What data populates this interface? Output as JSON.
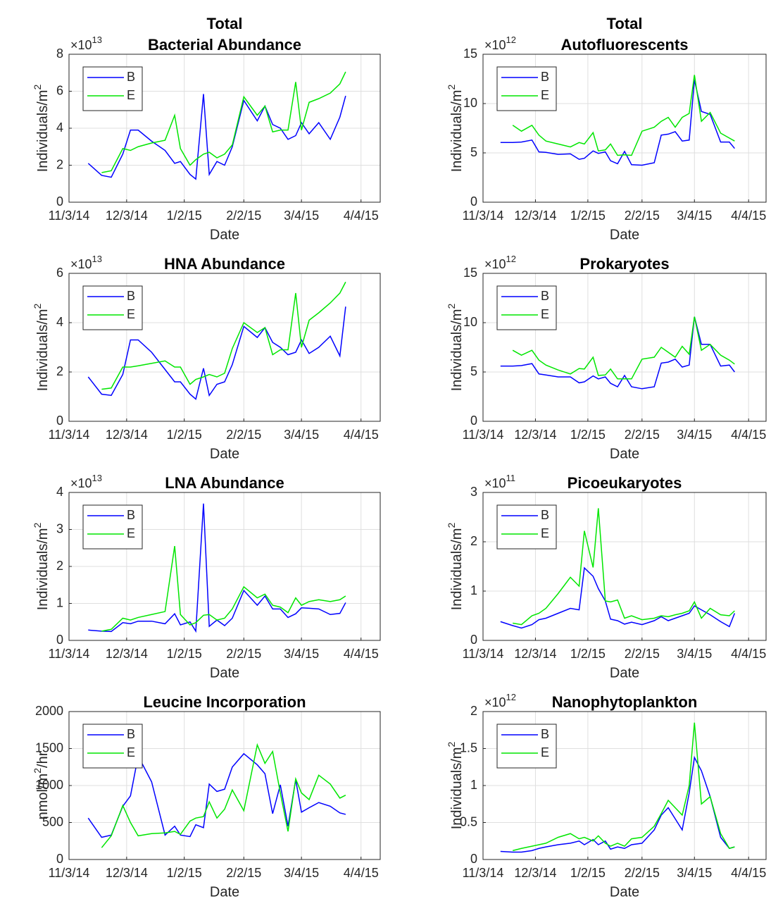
{
  "chart_data": [
    {
      "type": "line",
      "title": [
        "Total",
        "Bacterial Abundance"
      ],
      "xlabel": "Date",
      "ylabel": [
        "Individuals/m",
        "2"
      ],
      "y_multiplier": [
        "×10",
        "13"
      ],
      "x": [
        "11/13/14",
        "11/20/14",
        "11/25/14",
        "12/1/14",
        "12/5/14",
        "12/9/14",
        "12/16/14",
        "12/23/14",
        "12/28/14",
        "12/31/14",
        "1/5/15",
        "1/8/15",
        "1/12/15",
        "1/15/15",
        "1/19/15",
        "1/23/15",
        "1/27/15",
        "2/2/15",
        "2/9/15",
        "2/13/15",
        "2/17/15",
        "2/21/15",
        "2/25/15",
        "3/1/15",
        "3/4/15",
        "3/8/15",
        "3/13/15",
        "3/19/15",
        "3/24/15",
        "3/27/15"
      ],
      "xlim": [
        "11/3/14",
        "4/14/15"
      ],
      "xticks": [
        "11/3/14",
        "12/3/14",
        "1/2/15",
        "2/2/15",
        "3/4/15",
        "4/4/15"
      ],
      "ylim": [
        0,
        8
      ],
      "yticks": [
        0,
        2,
        4,
        6,
        8
      ],
      "grid": true,
      "legend": "upper left",
      "series": [
        {
          "name": "B",
          "color": "#0000ff",
          "values": [
            2.1,
            1.45,
            1.35,
            2.6,
            3.9,
            3.9,
            3.3,
            2.8,
            2.1,
            2.2,
            1.5,
            1.25,
            5.85,
            1.5,
            2.2,
            2.0,
            3.0,
            5.5,
            4.4,
            5.2,
            4.2,
            4.0,
            3.4,
            3.6,
            4.3,
            3.7,
            4.3,
            3.4,
            4.6,
            5.75
          ]
        },
        {
          "name": "E",
          "color": "#00e600",
          "values": [
            null,
            1.6,
            1.7,
            2.9,
            2.8,
            3.0,
            3.2,
            3.35,
            4.7,
            2.9,
            2.0,
            2.3,
            2.6,
            2.7,
            2.4,
            2.6,
            3.1,
            5.7,
            4.7,
            5.2,
            3.8,
            3.9,
            3.9,
            6.5,
            3.9,
            5.4,
            5.6,
            5.9,
            6.4,
            7.05
          ]
        }
      ]
    },
    {
      "type": "line",
      "title": [
        "Total",
        "Autofluorescents"
      ],
      "xlabel": "Date",
      "ylabel": [
        "Individuals/m",
        "2"
      ],
      "y_multiplier": [
        "×10",
        "12"
      ],
      "x": [
        "11/13/14",
        "11/20/14",
        "11/25/14",
        "12/1/14",
        "12/5/14",
        "12/9/14",
        "12/16/14",
        "12/23/14",
        "12/28/14",
        "12/31/14",
        "1/5/15",
        "1/8/15",
        "1/12/15",
        "1/15/15",
        "1/19/15",
        "1/23/15",
        "1/27/15",
        "2/2/15",
        "2/9/15",
        "2/13/15",
        "2/17/15",
        "2/21/15",
        "2/25/15",
        "3/1/15",
        "3/4/15",
        "3/8/15",
        "3/13/15",
        "3/19/15",
        "3/24/15",
        "3/27/15"
      ],
      "xlim": [
        "11/3/14",
        "4/14/15"
      ],
      "xticks": [
        "11/3/14",
        "12/3/14",
        "1/2/15",
        "2/2/15",
        "3/4/15",
        "4/4/15"
      ],
      "ylim": [
        0,
        15
      ],
      "yticks": [
        0,
        5,
        10,
        15
      ],
      "grid": true,
      "legend": "upper left",
      "series": [
        {
          "name": "B",
          "color": "#0000ff",
          "values": [
            6.05,
            6.05,
            6.1,
            6.3,
            5.1,
            5.05,
            4.85,
            4.9,
            4.35,
            4.45,
            5.2,
            4.95,
            5.1,
            4.2,
            3.9,
            5.15,
            3.8,
            3.75,
            4.0,
            6.8,
            6.9,
            7.15,
            6.2,
            6.3,
            12.4,
            9.2,
            8.9,
            6.1,
            6.1,
            5.45
          ]
        },
        {
          "name": "E",
          "color": "#00e600",
          "values": [
            null,
            7.8,
            7.2,
            7.8,
            6.8,
            6.2,
            5.9,
            5.6,
            6.05,
            5.9,
            7.05,
            5.2,
            5.3,
            5.9,
            4.75,
            4.8,
            4.75,
            7.2,
            7.6,
            8.2,
            8.6,
            7.6,
            8.6,
            9.0,
            12.9,
            8.2,
            9.1,
            7.0,
            6.5,
            6.2
          ]
        }
      ]
    },
    {
      "type": "line",
      "title": [
        "HNA Abundance"
      ],
      "xlabel": "Date",
      "ylabel": [
        "Individuals/m",
        "2"
      ],
      "y_multiplier": [
        "×10",
        "13"
      ],
      "x": [
        "11/13/14",
        "11/20/14",
        "11/25/14",
        "12/1/14",
        "12/5/14",
        "12/9/14",
        "12/16/14",
        "12/23/14",
        "12/28/14",
        "12/31/14",
        "1/5/15",
        "1/8/15",
        "1/12/15",
        "1/15/15",
        "1/19/15",
        "1/23/15",
        "1/27/15",
        "2/2/15",
        "2/9/15",
        "2/13/15",
        "2/17/15",
        "2/21/15",
        "2/25/15",
        "3/1/15",
        "3/4/15",
        "3/8/15",
        "3/13/15",
        "3/19/15",
        "3/24/15",
        "3/27/15"
      ],
      "xlim": [
        "11/3/14",
        "4/14/15"
      ],
      "xticks": [
        "11/3/14",
        "12/3/14",
        "1/2/15",
        "2/2/15",
        "3/4/15",
        "4/4/15"
      ],
      "ylim": [
        0,
        6
      ],
      "yticks": [
        0,
        2,
        4,
        6
      ],
      "grid": true,
      "legend": "upper left",
      "series": [
        {
          "name": "B",
          "color": "#0000ff",
          "values": [
            1.8,
            1.1,
            1.05,
            1.9,
            3.3,
            3.3,
            2.8,
            2.1,
            1.6,
            1.6,
            1.1,
            0.9,
            2.15,
            1.05,
            1.5,
            1.6,
            2.3,
            3.85,
            3.4,
            3.8,
            3.2,
            3.0,
            2.7,
            2.8,
            3.3,
            2.75,
            3.0,
            3.45,
            2.65,
            4.65
          ]
        },
        {
          "name": "E",
          "color": "#00e600",
          "values": [
            null,
            1.3,
            1.35,
            2.2,
            2.2,
            2.25,
            2.35,
            2.45,
            2.2,
            2.2,
            1.5,
            1.7,
            1.8,
            1.9,
            1.8,
            1.95,
            2.95,
            4.0,
            3.6,
            3.8,
            2.7,
            2.9,
            2.9,
            5.2,
            3.0,
            4.1,
            4.4,
            4.8,
            5.2,
            5.65
          ]
        }
      ]
    },
    {
      "type": "line",
      "title": [
        "Prokaryotes"
      ],
      "xlabel": "Date",
      "ylabel": [
        "Individuals/m",
        "2"
      ],
      "y_multiplier": [
        "×10",
        "12"
      ],
      "x": [
        "11/13/14",
        "11/20/14",
        "11/25/14",
        "12/1/14",
        "12/5/14",
        "12/9/14",
        "12/16/14",
        "12/23/14",
        "12/28/14",
        "12/31/14",
        "1/5/15",
        "1/8/15",
        "1/12/15",
        "1/15/15",
        "1/19/15",
        "1/23/15",
        "1/27/15",
        "2/2/15",
        "2/9/15",
        "2/13/15",
        "2/17/15",
        "2/21/15",
        "2/25/15",
        "3/1/15",
        "3/4/15",
        "3/8/15",
        "3/13/15",
        "3/19/15",
        "3/24/15",
        "3/27/15"
      ],
      "xlim": [
        "11/3/14",
        "4/14/15"
      ],
      "xticks": [
        "11/3/14",
        "12/3/14",
        "1/2/15",
        "2/2/15",
        "3/4/15",
        "4/4/15"
      ],
      "ylim": [
        0,
        15
      ],
      "yticks": [
        0,
        5,
        10,
        15
      ],
      "grid": true,
      "legend": "upper left",
      "series": [
        {
          "name": "B",
          "color": "#0000ff",
          "values": [
            5.6,
            5.6,
            5.65,
            5.85,
            4.8,
            4.7,
            4.5,
            4.5,
            3.9,
            4.0,
            4.6,
            4.3,
            4.5,
            3.85,
            3.5,
            4.65,
            3.5,
            3.3,
            3.5,
            5.9,
            6.0,
            6.3,
            5.5,
            5.7,
            10.6,
            7.8,
            7.8,
            5.6,
            5.7,
            5.0
          ]
        },
        {
          "name": "E",
          "color": "#00e600",
          "values": [
            null,
            7.2,
            6.7,
            7.2,
            6.2,
            5.7,
            5.2,
            4.8,
            5.35,
            5.3,
            6.5,
            4.65,
            4.7,
            5.3,
            4.3,
            4.3,
            4.3,
            6.3,
            6.5,
            7.5,
            7.0,
            6.5,
            7.6,
            6.8,
            10.6,
            7.2,
            7.8,
            6.7,
            6.2,
            5.8
          ]
        }
      ]
    },
    {
      "type": "line",
      "title": [
        "LNA Abundance"
      ],
      "xlabel": "Date",
      "ylabel": [
        "Individuals/m",
        "2"
      ],
      "y_multiplier": [
        "×10",
        "13"
      ],
      "x": [
        "11/13/14",
        "11/20/14",
        "11/25/14",
        "12/1/14",
        "12/5/14",
        "12/9/14",
        "12/16/14",
        "12/23/14",
        "12/28/14",
        "12/31/14",
        "1/5/15",
        "1/8/15",
        "1/12/15",
        "1/15/15",
        "1/19/15",
        "1/23/15",
        "1/27/15",
        "2/2/15",
        "2/9/15",
        "2/13/15",
        "2/17/15",
        "2/21/15",
        "2/25/15",
        "3/1/15",
        "3/4/15",
        "3/8/15",
        "3/13/15",
        "3/19/15",
        "3/24/15",
        "3/27/15"
      ],
      "xlim": [
        "11/3/14",
        "4/14/15"
      ],
      "xticks": [
        "11/3/14",
        "12/3/14",
        "1/2/15",
        "2/2/15",
        "3/4/15",
        "4/4/15"
      ],
      "ylim": [
        0,
        4
      ],
      "yticks": [
        0,
        1,
        2,
        3,
        4
      ],
      "grid": true,
      "legend": "upper left",
      "series": [
        {
          "name": "B",
          "color": "#0000ff",
          "values": [
            0.28,
            0.25,
            0.24,
            0.48,
            0.45,
            0.52,
            0.52,
            0.45,
            0.72,
            0.42,
            0.5,
            0.25,
            3.7,
            0.38,
            0.55,
            0.4,
            0.6,
            1.35,
            0.95,
            1.2,
            0.85,
            0.85,
            0.62,
            0.72,
            0.88,
            0.87,
            0.85,
            0.7,
            0.73,
            1.02
          ]
        },
        {
          "name": "E",
          "color": "#00e600",
          "values": [
            null,
            0.25,
            0.3,
            0.6,
            0.55,
            0.62,
            0.7,
            0.78,
            2.55,
            0.7,
            0.42,
            0.48,
            0.68,
            0.7,
            0.55,
            0.6,
            0.85,
            1.45,
            1.15,
            1.25,
            0.95,
            0.9,
            0.75,
            1.15,
            0.95,
            1.05,
            1.1,
            1.05,
            1.1,
            1.2
          ]
        }
      ]
    },
    {
      "type": "line",
      "title": [
        "Picoeukaryotes"
      ],
      "xlabel": "Date",
      "ylabel": [
        "Individuals/m",
        "2"
      ],
      "y_multiplier": [
        "×10",
        "11"
      ],
      "x": [
        "11/13/14",
        "11/20/14",
        "11/25/14",
        "12/1/14",
        "12/5/14",
        "12/9/14",
        "12/16/14",
        "12/23/14",
        "12/28/14",
        "12/31/14",
        "1/5/15",
        "1/8/15",
        "1/12/15",
        "1/15/15",
        "1/19/15",
        "1/23/15",
        "1/27/15",
        "2/2/15",
        "2/9/15",
        "2/13/15",
        "2/17/15",
        "2/21/15",
        "2/25/15",
        "3/1/15",
        "3/4/15",
        "3/8/15",
        "3/13/15",
        "3/19/15",
        "3/24/15",
        "3/27/15"
      ],
      "xlim": [
        "11/3/14",
        "4/14/15"
      ],
      "xticks": [
        "11/3/14",
        "12/3/14",
        "1/2/15",
        "2/2/15",
        "3/4/15",
        "4/4/15"
      ],
      "ylim": [
        0,
        3
      ],
      "yticks": [
        0,
        1,
        2,
        3
      ],
      "grid": true,
      "legend": "upper left",
      "series": [
        {
          "name": "B",
          "color": "#0000ff",
          "values": [
            0.38,
            0.3,
            0.25,
            0.32,
            0.42,
            0.45,
            0.55,
            0.65,
            0.62,
            1.47,
            1.3,
            1.05,
            0.8,
            0.43,
            0.4,
            0.33,
            0.37,
            0.32,
            0.4,
            0.48,
            0.4,
            0.45,
            0.5,
            0.55,
            0.7,
            0.62,
            0.52,
            0.38,
            0.28,
            0.55
          ]
        },
        {
          "name": "E",
          "color": "#00e600",
          "values": [
            null,
            0.35,
            0.32,
            0.5,
            0.55,
            0.65,
            0.95,
            1.28,
            1.1,
            2.22,
            1.48,
            2.68,
            0.8,
            0.78,
            0.82,
            0.45,
            0.5,
            0.42,
            0.45,
            0.5,
            0.48,
            0.52,
            0.55,
            0.6,
            0.78,
            0.45,
            0.65,
            0.52,
            0.5,
            0.6
          ]
        }
      ]
    },
    {
      "type": "line",
      "title": [
        "Leucine Incorporation"
      ],
      "xlabel": "Date",
      "ylabel": [
        "nmol/m",
        "2",
        "/hr"
      ],
      "x": [
        "11/13/14",
        "11/20/14",
        "11/25/14",
        "12/1/14",
        "12/5/14",
        "12/9/14",
        "12/16/14",
        "12/23/14",
        "12/28/14",
        "12/31/14",
        "1/5/15",
        "1/8/15",
        "1/12/15",
        "1/15/15",
        "1/19/15",
        "1/23/15",
        "1/27/15",
        "2/2/15",
        "2/9/15",
        "2/13/15",
        "2/17/15",
        "2/21/15",
        "2/25/15",
        "3/1/15",
        "3/4/15",
        "3/8/15",
        "3/13/15",
        "3/19/15",
        "3/24/15",
        "3/27/15"
      ],
      "xlim": [
        "11/3/14",
        "4/14/15"
      ],
      "xticks": [
        "11/3/14",
        "12/3/14",
        "1/2/15",
        "2/2/15",
        "3/4/15",
        "4/4/15"
      ],
      "ylim": [
        0,
        2000
      ],
      "yticks": [
        0,
        500,
        1000,
        1500,
        2000
      ],
      "grid": true,
      "legend": "upper left",
      "series": [
        {
          "name": "B",
          "color": "#0000ff",
          "values": [
            560,
            300,
            330,
            720,
            860,
            1400,
            1050,
            330,
            450,
            330,
            310,
            470,
            430,
            1020,
            920,
            950,
            1250,
            1430,
            1280,
            1160,
            620,
            1010,
            450,
            1080,
            640,
            700,
            770,
            720,
            630,
            610
          ]
        },
        {
          "name": "E",
          "color": "#00e600",
          "values": [
            null,
            160,
            320,
            730,
            500,
            320,
            350,
            360,
            380,
            340,
            520,
            560,
            580,
            780,
            560,
            680,
            940,
            660,
            1550,
            1300,
            1460,
            900,
            380,
            1090,
            900,
            810,
            1140,
            1020,
            830,
            870
          ]
        }
      ]
    },
    {
      "type": "line",
      "title": [
        "Nanophytoplankton"
      ],
      "xlabel": "Date",
      "ylabel": [
        "Individuals/m",
        "2"
      ],
      "y_multiplier": [
        "×10",
        "12"
      ],
      "x": [
        "11/13/14",
        "11/20/14",
        "11/25/14",
        "12/1/14",
        "12/5/14",
        "12/9/14",
        "12/16/14",
        "12/23/14",
        "12/28/14",
        "12/31/14",
        "1/5/15",
        "1/8/15",
        "1/12/15",
        "1/15/15",
        "1/19/15",
        "1/23/15",
        "1/27/15",
        "2/2/15",
        "2/9/15",
        "2/13/15",
        "2/17/15",
        "2/21/15",
        "2/25/15",
        "3/1/15",
        "3/4/15",
        "3/8/15",
        "3/13/15",
        "3/19/15",
        "3/24/15",
        "3/27/15"
      ],
      "xlim": [
        "11/3/14",
        "4/14/15"
      ],
      "xticks": [
        "11/3/14",
        "12/3/14",
        "1/2/15",
        "2/2/15",
        "3/4/15",
        "4/4/15"
      ],
      "ylim": [
        0,
        2
      ],
      "yticks": [
        0,
        0.5,
        1,
        1.5,
        2
      ],
      "grid": true,
      "legend": "upper left",
      "series": [
        {
          "name": "B",
          "color": "#0000ff",
          "values": [
            0.11,
            0.1,
            0.1,
            0.12,
            0.15,
            0.17,
            0.2,
            0.22,
            0.25,
            0.2,
            0.27,
            0.2,
            0.25,
            0.14,
            0.17,
            0.15,
            0.2,
            0.22,
            0.4,
            0.6,
            0.7,
            0.55,
            0.4,
            0.9,
            1.38,
            1.2,
            0.85,
            0.3,
            0.15,
            0.17
          ]
        },
        {
          "name": "E",
          "color": "#00e600",
          "values": [
            null,
            0.12,
            0.15,
            0.18,
            0.2,
            0.22,
            0.3,
            0.35,
            0.28,
            0.3,
            0.25,
            0.32,
            0.22,
            0.18,
            0.22,
            0.18,
            0.28,
            0.3,
            0.45,
            0.62,
            0.8,
            0.7,
            0.6,
            1.0,
            1.85,
            0.75,
            0.85,
            0.35,
            0.15,
            0.17
          ]
        }
      ]
    }
  ]
}
